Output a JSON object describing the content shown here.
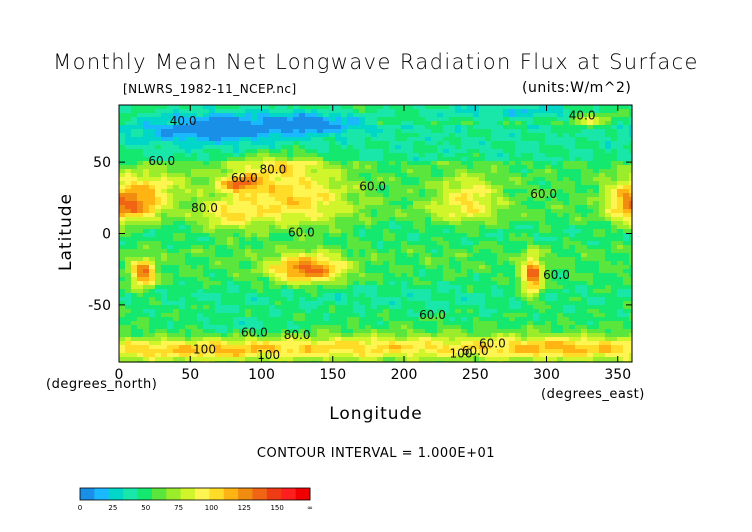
{
  "chart_data": {
    "type": "heatmap",
    "title": "Monthly Mean Net Longwave Radiation Flux at Surface",
    "subtitle": "[NLWRS_1982-11_NCEP.nc]",
    "units": "(units:W/m^2)",
    "xlabel": "Longitude",
    "ylabel": "Latitude",
    "x_unit_label": "(degrees_east)",
    "y_unit_label": "(degrees_north)",
    "xlim": [
      0,
      360
    ],
    "ylim": [
      -90,
      90
    ],
    "x_ticks": [
      0,
      50,
      100,
      150,
      200,
      250,
      300,
      350
    ],
    "y_ticks": [
      50,
      0,
      -50
    ],
    "contour_interval_text": "CONTOUR INTERVAL = 1.000E+01",
    "colorbar": {
      "tick_labels": [
        "0",
        "25",
        "50",
        "75",
        "100",
        "125",
        "150",
        "∞"
      ],
      "colors": [
        "#1a8fe8",
        "#19b8ff",
        "#00d7c8",
        "#19e6a9",
        "#14e86e",
        "#5ae63c",
        "#9bec2a",
        "#d0f52a",
        "#fff550",
        "#ffdc28",
        "#ffb414",
        "#f08c0f",
        "#f06414",
        "#f03c14",
        "#ff1e1e",
        "#f00000"
      ]
    },
    "contour_labels": [
      {
        "text": "40.0",
        "lon": 45,
        "lat": 76
      },
      {
        "text": "60.0",
        "lon": 30,
        "lat": 48
      },
      {
        "text": "80.0",
        "lon": 60,
        "lat": 15
      },
      {
        "text": "80.0",
        "lon": 108,
        "lat": 42
      },
      {
        "text": "60.0",
        "lon": 88,
        "lat": 36
      },
      {
        "text": "60.0",
        "lon": 178,
        "lat": 30
      },
      {
        "text": "60.0",
        "lon": 128,
        "lat": -2
      },
      {
        "text": "60.0",
        "lon": 298,
        "lat": 25
      },
      {
        "text": "40.0",
        "lon": 325,
        "lat": 80
      },
      {
        "text": "60.0",
        "lon": 307,
        "lat": -32
      },
      {
        "text": "60.0",
        "lon": 220,
        "lat": -60
      },
      {
        "text": "60.0",
        "lon": 95,
        "lat": -72
      },
      {
        "text": "80.0",
        "lon": 125,
        "lat": -74
      },
      {
        "text": "100",
        "lon": 60,
        "lat": -84
      },
      {
        "text": "100",
        "lon": 105,
        "lat": -88
      },
      {
        "text": "100",
        "lon": 240,
        "lat": -87
      },
      {
        "text": "60.0",
        "lon": 262,
        "lat": -80
      },
      {
        "text": "60.0",
        "lon": 250,
        "lat": -85
      }
    ]
  }
}
